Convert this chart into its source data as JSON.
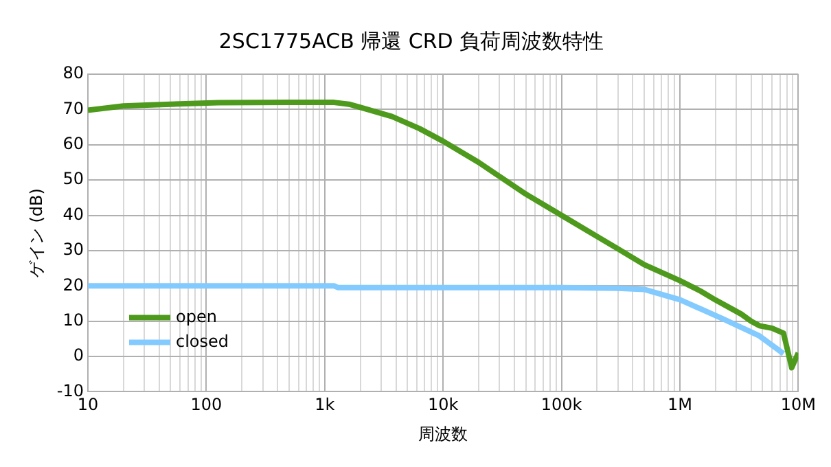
{
  "chart_data": {
    "type": "line",
    "title": "2SC1775ACB 帰還 CRD 負荷周波数特性",
    "xlabel": "周波数",
    "ylabel": "ゲイン (dB)",
    "log": "x",
    "xlim": [
      10,
      10000000
    ],
    "ylim": [
      -10,
      80
    ],
    "xticks": [
      10,
      {
        "value": 20,
        "label": null
      },
      {
        "value": 30,
        "label": null
      },
      {
        "value": 40,
        "label": null
      },
      {
        "value": 50,
        "label": null
      },
      {
        "value": 60,
        "label": null
      },
      {
        "value": 70,
        "label": null
      },
      {
        "value": 80,
        "label": null
      },
      {
        "value": 90,
        "label": null
      },
      100,
      {
        "value": 200,
        "label": null
      },
      {
        "value": 300,
        "label": null
      },
      {
        "value": 400,
        "label": null
      },
      {
        "value": 500,
        "label": null
      },
      {
        "value": 600,
        "label": null
      },
      {
        "value": 700,
        "label": null
      },
      {
        "value": 800,
        "label": null
      },
      {
        "value": 900,
        "label": null
      },
      {
        "value": 1000,
        "label": "1k"
      },
      {
        "value": 2000,
        "label": null
      },
      {
        "value": 3000,
        "label": null
      },
      {
        "value": 4000,
        "label": null
      },
      {
        "value": 5000,
        "label": null
      },
      {
        "value": 6000,
        "label": null
      },
      {
        "value": 7000,
        "label": null
      },
      {
        "value": 8000,
        "label": null
      },
      {
        "value": 9000,
        "label": null
      },
      {
        "value": 10000,
        "label": "10k"
      },
      {
        "value": 20000,
        "label": null
      },
      {
        "value": 30000,
        "label": null
      },
      {
        "value": 40000,
        "label": null
      },
      {
        "value": 50000,
        "label": null
      },
      {
        "value": 60000,
        "label": null
      },
      {
        "value": 70000,
        "label": null
      },
      {
        "value": 80000,
        "label": null
      },
      {
        "value": 90000,
        "label": null
      },
      {
        "value": 100000,
        "label": "100k"
      },
      {
        "value": 200000,
        "label": null
      },
      {
        "value": 300000,
        "label": null
      },
      {
        "value": 400000,
        "label": null
      },
      {
        "value": 500000,
        "label": null
      },
      {
        "value": 600000,
        "label": null
      },
      {
        "value": 700000,
        "label": null
      },
      {
        "value": 800000,
        "label": null
      },
      {
        "value": 900000,
        "label": null
      },
      {
        "value": 1000000,
        "label": "1M"
      },
      {
        "value": 2000000,
        "label": null
      },
      {
        "value": 3000000,
        "label": null
      },
      {
        "value": 4000000,
        "label": null
      },
      {
        "value": 5000000,
        "label": null
      },
      {
        "value": 6000000,
        "label": null
      },
      {
        "value": 7000000,
        "label": null
      },
      {
        "value": 8000000,
        "label": null
      },
      {
        "value": 9000000,
        "label": null
      },
      {
        "value": 10000000,
        "label": "10M"
      }
    ],
    "yticks": [
      -10,
      0,
      10,
      20,
      30,
      40,
      50,
      60,
      70,
      80
    ],
    "grid": true,
    "legend": "bottom left",
    "marker": "none",
    "line_style": "solid",
    "series": [
      {
        "name": "open",
        "color": "#4e9a1c",
        "x": [
          10,
          20,
          50,
          126,
          500,
          1200,
          1600,
          2100,
          3700,
          6300,
          10000,
          20000,
          30000,
          50000,
          100000,
          200000,
          300000,
          500000,
          1000000,
          1500000,
          2000000,
          3300000,
          4000000,
          4700000,
          6000000,
          7500000,
          8800000,
          10000000
        ],
        "values": [
          69.8,
          71,
          71.5,
          71.9,
          72,
          72,
          71.5,
          70.4,
          68,
          64.6,
          61,
          55,
          51,
          46,
          40,
          34,
          30.5,
          26,
          21.5,
          18.5,
          16,
          12,
          10,
          8.7,
          8,
          6.6,
          -3.2,
          1
        ]
      },
      {
        "name": "closed",
        "color": "#83caff",
        "x": [
          10,
          100,
          1000,
          1200,
          1300,
          10000,
          100000,
          300000,
          500000,
          1000000,
          2300000,
          4700000,
          7500000
        ],
        "values": [
          20,
          20,
          20,
          20,
          19.5,
          19.5,
          19.5,
          19.3,
          19,
          16.1,
          10.7,
          5.8,
          0.8
        ]
      }
    ]
  }
}
